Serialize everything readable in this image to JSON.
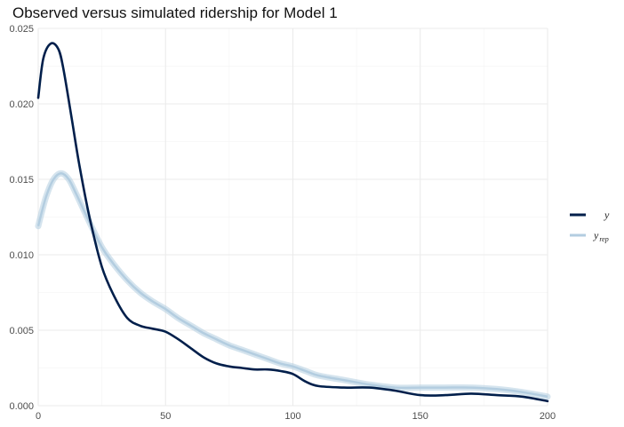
{
  "chart_data": {
    "type": "line",
    "title": "Observed versus simulated ridership for Model 1",
    "xlabel": "",
    "ylabel": "",
    "xlim": [
      0,
      200
    ],
    "ylim": [
      0,
      0.025
    ],
    "x_ticks": [
      "0",
      "50",
      "100",
      "150",
      "200"
    ],
    "y_ticks": [
      "0.000",
      "0.005",
      "0.010",
      "0.015",
      "0.020",
      "0.025"
    ],
    "grid": true,
    "legend": {
      "position": "right",
      "entries": [
        {
          "label": "y",
          "sub": ""
        },
        {
          "label": "y",
          "sub": "rep"
        }
      ]
    },
    "series": [
      {
        "name": "y",
        "color": "#011f4b",
        "x": [
          0,
          2,
          5,
          8,
          10,
          13,
          16,
          20,
          25,
          30,
          35,
          40,
          45,
          50,
          55,
          60,
          65,
          70,
          75,
          80,
          85,
          90,
          95,
          100,
          105,
          110,
          120,
          130,
          140,
          150,
          160,
          170,
          180,
          190,
          200
        ],
        "y": [
          0.0204,
          0.023,
          0.024,
          0.0236,
          0.0222,
          0.0192,
          0.0161,
          0.0126,
          0.0092,
          0.0072,
          0.0058,
          0.0053,
          0.0051,
          0.0049,
          0.0044,
          0.0038,
          0.0032,
          0.0028,
          0.0026,
          0.0025,
          0.0024,
          0.0024,
          0.0023,
          0.0021,
          0.0016,
          0.0013,
          0.0012,
          0.0012,
          0.001,
          0.0007,
          0.0007,
          0.0008,
          0.0007,
          0.0006,
          0.0003
        ]
      },
      {
        "name": "y_rep",
        "color": "#b3cde0",
        "x": [
          0,
          3,
          6,
          9,
          12,
          15,
          20,
          25,
          30,
          35,
          40,
          45,
          50,
          55,
          60,
          65,
          70,
          75,
          80,
          85,
          90,
          95,
          100,
          105,
          110,
          120,
          130,
          140,
          150,
          160,
          170,
          180,
          190,
          200
        ],
        "y": [
          0.0119,
          0.0138,
          0.015,
          0.0154,
          0.015,
          0.014,
          0.0122,
          0.0105,
          0.0093,
          0.0083,
          0.0075,
          0.0069,
          0.0064,
          0.0058,
          0.0053,
          0.0048,
          0.0044,
          0.004,
          0.0037,
          0.0034,
          0.0031,
          0.0028,
          0.0026,
          0.0023,
          0.002,
          0.0017,
          0.0014,
          0.0012,
          0.0012,
          0.0012,
          0.0012,
          0.0011,
          0.0009,
          0.0006
        ]
      }
    ]
  }
}
